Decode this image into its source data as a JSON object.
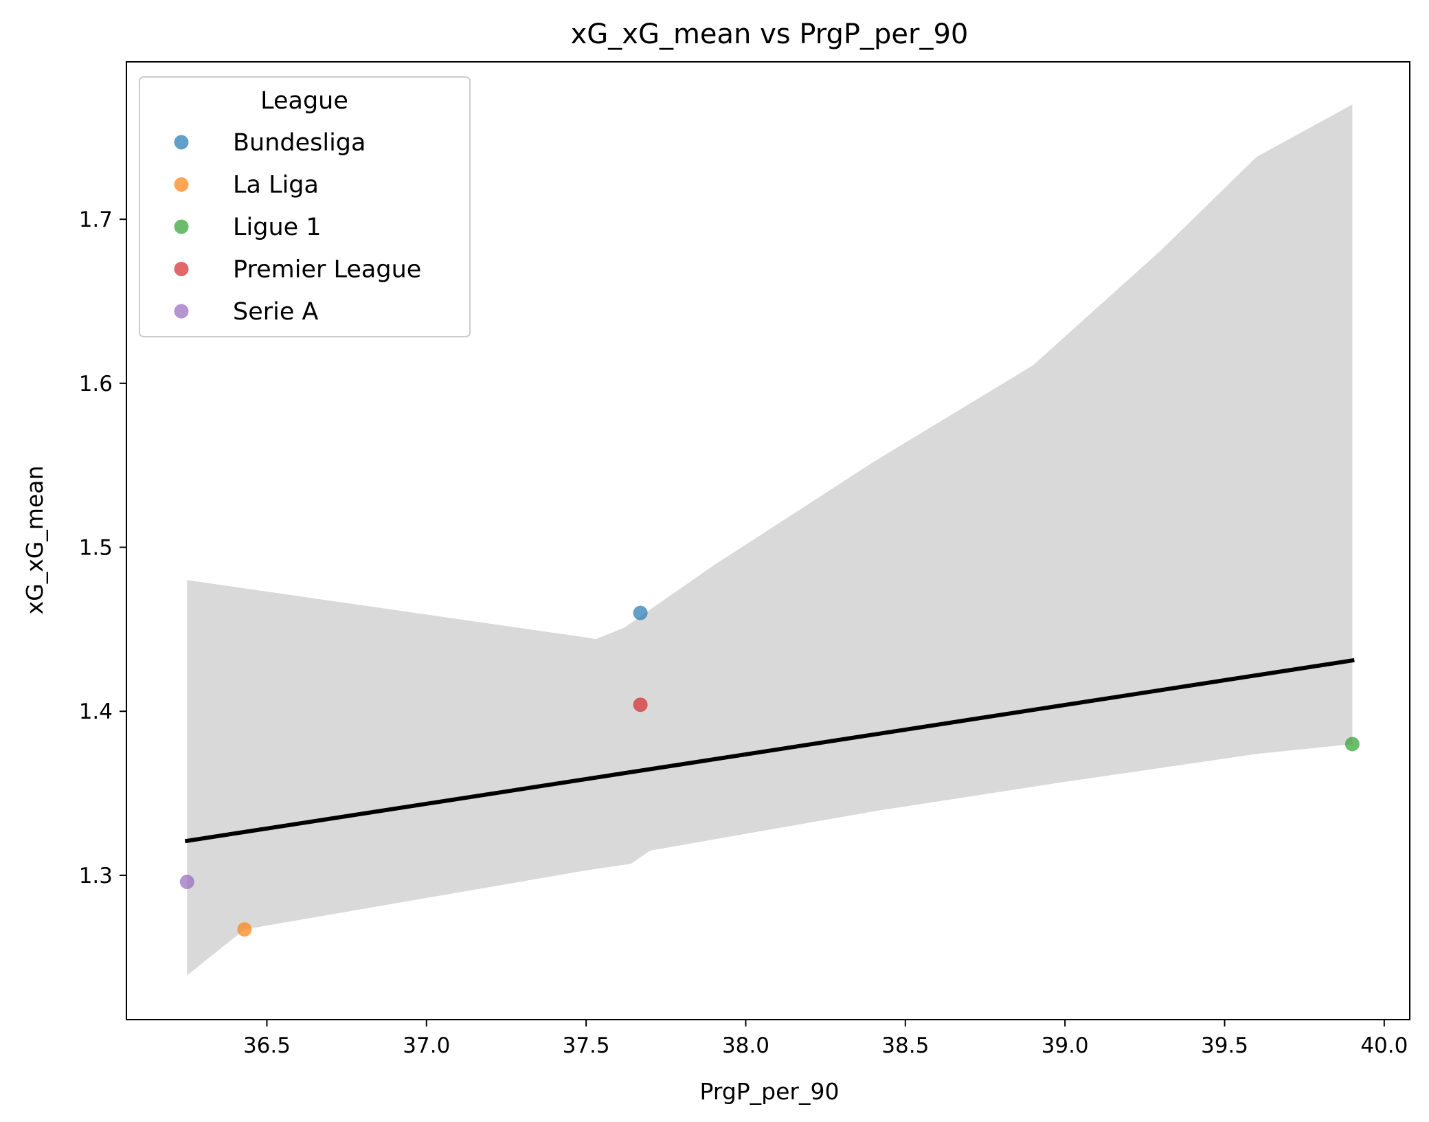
{
  "chart_data": {
    "type": "scatter",
    "title": "xG_xG_mean vs PrgP_per_90",
    "xlabel": "PrgP_per_90",
    "ylabel": "xG_xG_mean",
    "xlim": [
      36.06,
      40.08
    ],
    "ylim": [
      1.212,
      1.796
    ],
    "xticks": [
      "36.5",
      "37.0",
      "37.5",
      "38.0",
      "38.5",
      "39.0",
      "39.5",
      "40.0"
    ],
    "yticks": [
      "1.3",
      "1.4",
      "1.5",
      "1.6",
      "1.7"
    ],
    "grid": false,
    "legend": {
      "title": "League",
      "placement": "top-left"
    },
    "series": [
      {
        "name": "Bundesliga",
        "color": "#1f77b4",
        "x": [
          37.67
        ],
        "y": [
          1.46
        ]
      },
      {
        "name": "La Liga",
        "color": "#ff7f0e",
        "x": [
          36.43
        ],
        "y": [
          1.267
        ]
      },
      {
        "name": "Ligue 1",
        "color": "#2ca02c",
        "x": [
          39.9
        ],
        "y": [
          1.38
        ]
      },
      {
        "name": "Premier League",
        "color": "#d62728",
        "x": [
          37.67
        ],
        "y": [
          1.404
        ]
      },
      {
        "name": "Serie A",
        "color": "#9467bd",
        "x": [
          36.25
        ],
        "y": [
          1.296
        ]
      }
    ],
    "regression": {
      "color": "#000000",
      "x": [
        36.25,
        39.9
      ],
      "y": [
        1.321,
        1.431
      ]
    },
    "confidence_band": {
      "color": "#d9d9d9",
      "upper": [
        [
          36.25,
          1.48
        ],
        [
          37.5,
          1.445
        ],
        [
          37.53,
          1.444
        ],
        [
          37.62,
          1.451
        ],
        [
          37.7,
          1.462
        ],
        [
          37.9,
          1.489
        ],
        [
          38.4,
          1.552
        ],
        [
          38.9,
          1.611
        ],
        [
          39.3,
          1.681
        ],
        [
          39.6,
          1.738
        ],
        [
          39.9,
          1.77
        ]
      ],
      "lower": [
        [
          39.9,
          1.38
        ],
        [
          39.6,
          1.374
        ],
        [
          39.0,
          1.357
        ],
        [
          38.4,
          1.339
        ],
        [
          37.7,
          1.315
        ],
        [
          37.64,
          1.307
        ],
        [
          37.5,
          1.303
        ],
        [
          36.43,
          1.267
        ],
        [
          36.25,
          1.239
        ]
      ]
    }
  }
}
